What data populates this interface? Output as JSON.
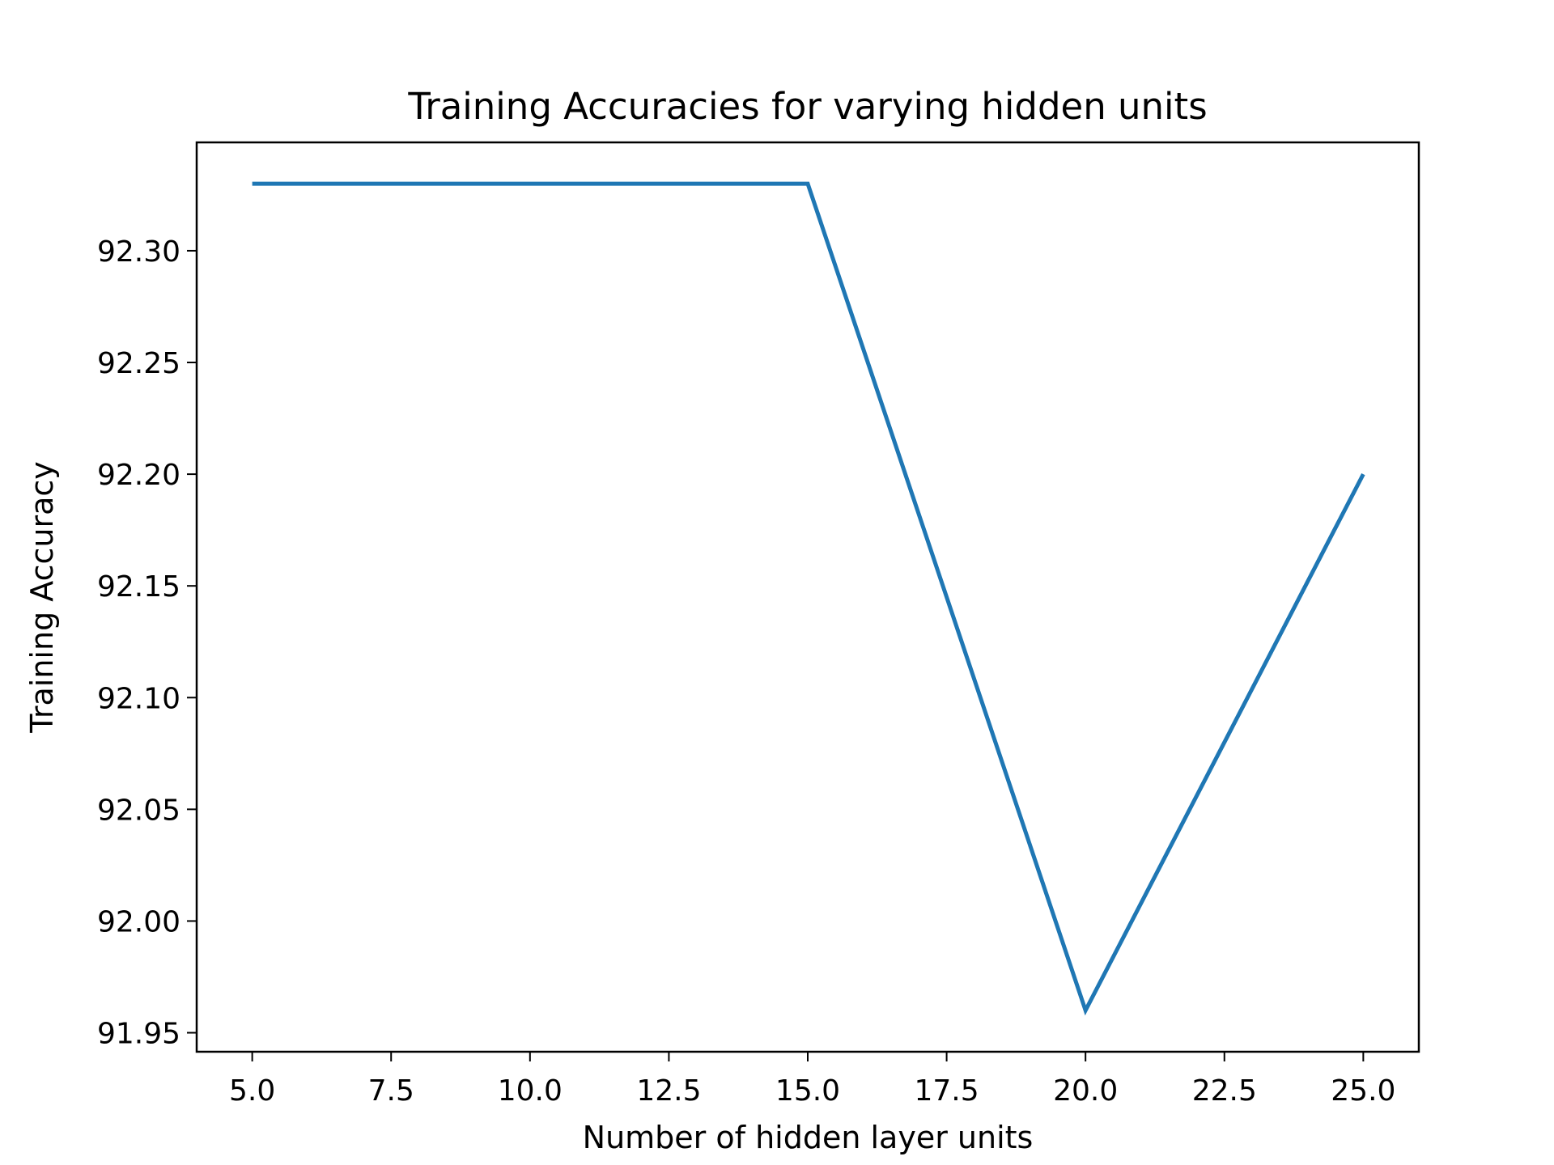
{
  "chart_data": {
    "type": "line",
    "title": "Training Accuracies for varying hidden units",
    "xlabel": "Number of hidden layer units",
    "ylabel": "Training Accuracy",
    "x": [
      5,
      10,
      15,
      20,
      25
    ],
    "series": [
      {
        "values": [
          92.33,
          92.33,
          92.33,
          91.96,
          92.2
        ],
        "color": "#1f77b4"
      }
    ],
    "xlim": [
      4,
      26
    ],
    "ylim": [
      91.9415,
      92.3485
    ],
    "xticks": [
      5.0,
      7.5,
      10.0,
      12.5,
      15.0,
      17.5,
      20.0,
      22.5,
      25.0
    ],
    "xtick_labels": [
      "5.0",
      "7.5",
      "10.0",
      "12.5",
      "15.0",
      "17.5",
      "20.0",
      "22.5",
      "25.0"
    ],
    "yticks": [
      91.95,
      92.0,
      92.05,
      92.1,
      92.15,
      92.2,
      92.25,
      92.3
    ],
    "ytick_labels": [
      "91.95",
      "92.00",
      "92.05",
      "92.10",
      "92.15",
      "92.20",
      "92.25",
      "92.30"
    ],
    "grid": false,
    "legend": "none"
  }
}
